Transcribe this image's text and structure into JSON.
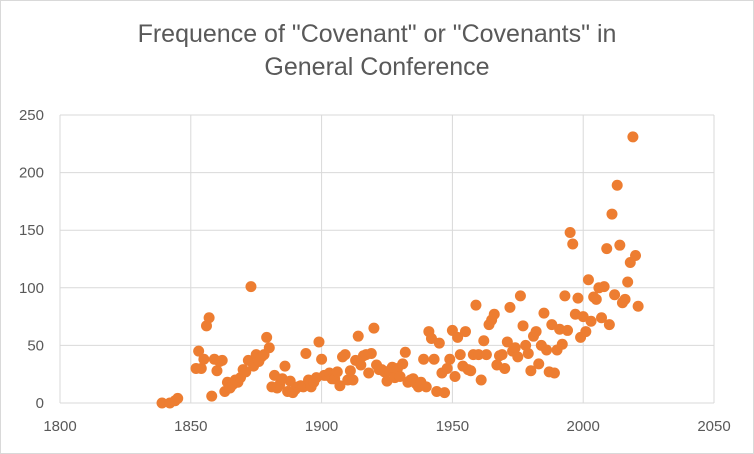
{
  "chart_data": {
    "type": "scatter",
    "title_lines": [
      "Frequence of \"Covenant\" or \"Covenants\" in",
      "General Conference"
    ],
    "xlabel": "",
    "ylabel": "",
    "xlim": [
      1800,
      2050
    ],
    "ylim": [
      0,
      250
    ],
    "x_ticks": [
      1800,
      1850,
      1900,
      1950,
      2000,
      2050
    ],
    "y_ticks": [
      0,
      50,
      100,
      150,
      200,
      250
    ],
    "grid": true,
    "legend": "none",
    "marker_color": "#ED7D31",
    "grid_color": "#d9d9d9",
    "text_color": "#595959",
    "points": [
      [
        1839,
        0
      ],
      [
        1842,
        0
      ],
      [
        1844,
        2
      ],
      [
        1845,
        4
      ],
      [
        1852,
        30
      ],
      [
        1853,
        45
      ],
      [
        1854,
        30
      ],
      [
        1855,
        38
      ],
      [
        1856,
        67
      ],
      [
        1857,
        74
      ],
      [
        1858,
        6
      ],
      [
        1859,
        38
      ],
      [
        1860,
        28
      ],
      [
        1861,
        36
      ],
      [
        1862,
        37
      ],
      [
        1863,
        10
      ],
      [
        1864,
        18
      ],
      [
        1865,
        13
      ],
      [
        1866,
        16
      ],
      [
        1867,
        20
      ],
      [
        1868,
        18
      ],
      [
        1869,
        22
      ],
      [
        1870,
        29
      ],
      [
        1871,
        27
      ],
      [
        1872,
        37
      ],
      [
        1873,
        101
      ],
      [
        1874,
        32
      ],
      [
        1875,
        42
      ],
      [
        1876,
        36
      ],
      [
        1877,
        40
      ],
      [
        1878,
        42
      ],
      [
        1879,
        57
      ],
      [
        1880,
        48
      ],
      [
        1881,
        14
      ],
      [
        1882,
        24
      ],
      [
        1883,
        13
      ],
      [
        1884,
        16
      ],
      [
        1885,
        21
      ],
      [
        1886,
        32
      ],
      [
        1887,
        10
      ],
      [
        1888,
        19
      ],
      [
        1889,
        9
      ],
      [
        1890,
        12
      ],
      [
        1891,
        14
      ],
      [
        1892,
        15
      ],
      [
        1893,
        14
      ],
      [
        1894,
        43
      ],
      [
        1895,
        20
      ],
      [
        1896,
        14
      ],
      [
        1897,
        18
      ],
      [
        1898,
        22
      ],
      [
        1899,
        53
      ],
      [
        1900,
        38
      ],
      [
        1901,
        24
      ],
      [
        1902,
        24
      ],
      [
        1903,
        26
      ],
      [
        1904,
        21
      ],
      [
        1905,
        21
      ],
      [
        1906,
        27
      ],
      [
        1907,
        15
      ],
      [
        1908,
        40
      ],
      [
        1909,
        42
      ],
      [
        1910,
        20
      ],
      [
        1911,
        28
      ],
      [
        1912,
        20
      ],
      [
        1913,
        37
      ],
      [
        1914,
        58
      ],
      [
        1915,
        33
      ],
      [
        1916,
        41
      ],
      [
        1917,
        42
      ],
      [
        1918,
        26
      ],
      [
        1919,
        43
      ],
      [
        1920,
        65
      ],
      [
        1921,
        33
      ],
      [
        1922,
        29
      ],
      [
        1923,
        29
      ],
      [
        1924,
        27
      ],
      [
        1925,
        19
      ],
      [
        1926,
        28
      ],
      [
        1927,
        31
      ],
      [
        1928,
        22
      ],
      [
        1929,
        30
      ],
      [
        1930,
        23
      ],
      [
        1931,
        34
      ],
      [
        1932,
        44
      ],
      [
        1933,
        18
      ],
      [
        1934,
        20
      ],
      [
        1935,
        21
      ],
      [
        1936,
        17
      ],
      [
        1937,
        14
      ],
      [
        1938,
        18
      ],
      [
        1939,
        38
      ],
      [
        1940,
        14
      ],
      [
        1941,
        62
      ],
      [
        1942,
        56
      ],
      [
        1943,
        38
      ],
      [
        1944,
        10
      ],
      [
        1945,
        52
      ],
      [
        1946,
        26
      ],
      [
        1947,
        9
      ],
      [
        1948,
        30
      ],
      [
        1949,
        38
      ],
      [
        1950,
        63
      ],
      [
        1951,
        23
      ],
      [
        1952,
        57
      ],
      [
        1953,
        42
      ],
      [
        1954,
        32
      ],
      [
        1955,
        62
      ],
      [
        1956,
        29
      ],
      [
        1957,
        28
      ],
      [
        1958,
        42
      ],
      [
        1959,
        85
      ],
      [
        1960,
        42
      ],
      [
        1961,
        20
      ],
      [
        1962,
        54
      ],
      [
        1963,
        42
      ],
      [
        1964,
        68
      ],
      [
        1965,
        72
      ],
      [
        1966,
        77
      ],
      [
        1967,
        33
      ],
      [
        1968,
        41
      ],
      [
        1969,
        42
      ],
      [
        1970,
        30
      ],
      [
        1971,
        53
      ],
      [
        1972,
        83
      ],
      [
        1973,
        45
      ],
      [
        1974,
        48
      ],
      [
        1975,
        40
      ],
      [
        1976,
        93
      ],
      [
        1977,
        67
      ],
      [
        1978,
        50
      ],
      [
        1979,
        43
      ],
      [
        1980,
        28
      ],
      [
        1981,
        58
      ],
      [
        1982,
        62
      ],
      [
        1983,
        34
      ],
      [
        1984,
        50
      ],
      [
        1985,
        78
      ],
      [
        1986,
        46
      ],
      [
        1987,
        27
      ],
      [
        1988,
        68
      ],
      [
        1989,
        26
      ],
      [
        1990,
        46
      ],
      [
        1991,
        64
      ],
      [
        1992,
        51
      ],
      [
        1993,
        93
      ],
      [
        1994,
        63
      ],
      [
        1995,
        148
      ],
      [
        1996,
        138
      ],
      [
        1997,
        77
      ],
      [
        1998,
        91
      ],
      [
        1999,
        57
      ],
      [
        2000,
        75
      ],
      [
        2001,
        62
      ],
      [
        2002,
        107
      ],
      [
        2003,
        71
      ],
      [
        2004,
        92
      ],
      [
        2005,
        90
      ],
      [
        2006,
        100
      ],
      [
        2007,
        74
      ],
      [
        2008,
        101
      ],
      [
        2009,
        134
      ],
      [
        2010,
        68
      ],
      [
        2011,
        164
      ],
      [
        2012,
        94
      ],
      [
        2013,
        189
      ],
      [
        2014,
        137
      ],
      [
        2015,
        87
      ],
      [
        2016,
        90
      ],
      [
        2017,
        105
      ],
      [
        2018,
        122
      ],
      [
        2019,
        231
      ],
      [
        2020,
        128
      ],
      [
        2021,
        84
      ]
    ]
  }
}
